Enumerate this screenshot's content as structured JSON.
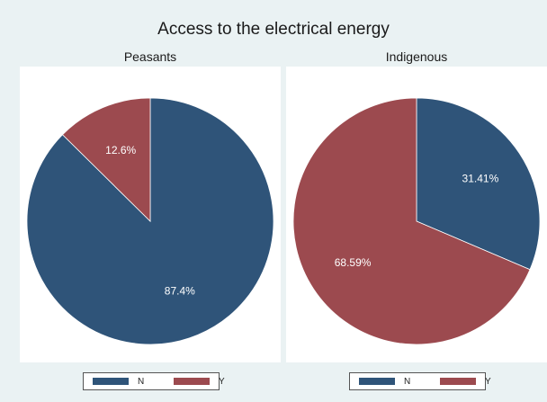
{
  "chart_data": {
    "type": "pie",
    "title": "Access to the electrical energy",
    "categories": [
      "N",
      "Y"
    ],
    "colors": {
      "N": "#2f5479",
      "Y": "#9c4a4f"
    },
    "legend_placement": "bottom",
    "panels": [
      {
        "title": "Peasants",
        "slices": [
          {
            "category": "N",
            "value": 87.4,
            "label": "87.4%"
          },
          {
            "category": "Y",
            "value": 12.6,
            "label": "12.6%"
          }
        ]
      },
      {
        "title": "Indigenous",
        "slices": [
          {
            "category": "N",
            "value": 31.41,
            "label": "31.41%"
          },
          {
            "category": "Y",
            "value": 68.59,
            "label": "68.59%"
          }
        ]
      }
    ]
  }
}
